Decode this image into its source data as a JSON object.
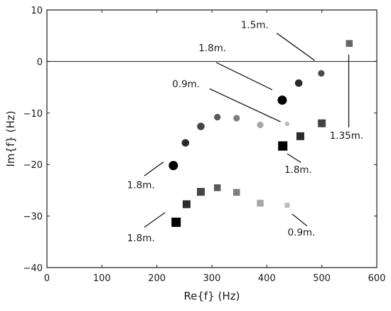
{
  "chart_data": {
    "type": "scatter",
    "xlabel": "Re{f} (Hz)",
    "ylabel": "Im{f} (Hz)",
    "xlim": [
      0,
      600
    ],
    "ylim": [
      -40,
      10
    ],
    "xticks": [
      0,
      100,
      200,
      300,
      400,
      500,
      600
    ],
    "yticks": [
      10,
      0,
      -10,
      -20,
      -30,
      -40
    ],
    "xtick_labels": [
      "0",
      "100",
      "200",
      "300",
      "400",
      "500",
      "600"
    ],
    "ytick_labels": [
      "10",
      "0",
      "−10",
      "−20",
      "−30",
      "−40"
    ],
    "reference_line_y": 0,
    "grid": false,
    "series": [
      {
        "marker": "circle",
        "points": [
          {
            "x": 230,
            "y": -20.2,
            "size": "large",
            "color": "#000000"
          },
          {
            "x": 252,
            "y": -15.8,
            "size": "medium",
            "color": "#2b2b2b"
          },
          {
            "x": 280,
            "y": -12.6,
            "size": "medium",
            "color": "#444444"
          },
          {
            "x": 310,
            "y": -10.8,
            "size": "small",
            "color": "#5a5a5a"
          },
          {
            "x": 345,
            "y": -11.0,
            "size": "small",
            "color": "#7d7d7d"
          },
          {
            "x": 388,
            "y": -12.3,
            "size": "small",
            "color": "#a6a6a6"
          },
          {
            "x": 437,
            "y": -12.1,
            "size": "tiny",
            "color": "#bdbdbd"
          },
          {
            "x": 428,
            "y": -7.5,
            "size": "large",
            "color": "#000000"
          },
          {
            "x": 458,
            "y": -4.2,
            "size": "medium",
            "color": "#2b2b2b"
          },
          {
            "x": 499,
            "y": -2.3,
            "size": "small",
            "color": "#4a4a4a"
          }
        ]
      },
      {
        "marker": "square",
        "points": [
          {
            "x": 235,
            "y": -31.2,
            "size": "large",
            "color": "#000000"
          },
          {
            "x": 254,
            "y": -27.7,
            "size": "medium",
            "color": "#2b2b2b"
          },
          {
            "x": 280,
            "y": -25.3,
            "size": "medium",
            "color": "#444444"
          },
          {
            "x": 310,
            "y": -24.5,
            "size": "small",
            "color": "#5a5a5a"
          },
          {
            "x": 345,
            "y": -25.4,
            "size": "small",
            "color": "#7d7d7d"
          },
          {
            "x": 388,
            "y": -27.5,
            "size": "small",
            "color": "#a6a6a6"
          },
          {
            "x": 437,
            "y": -27.9,
            "size": "tiny",
            "color": "#bdbdbd"
          },
          {
            "x": 429,
            "y": -16.4,
            "size": "large",
            "color": "#000000"
          },
          {
            "x": 461,
            "y": -14.5,
            "size": "medium",
            "color": "#2b2b2b"
          },
          {
            "x": 500,
            "y": -12.0,
            "size": "medium",
            "color": "#444444"
          },
          {
            "x": 550,
            "y": 3.5,
            "size": "small",
            "color": "#666666"
          }
        ]
      }
    ],
    "annotations": [
      {
        "text": "1.5m.",
        "label_at": [
          378,
          6.5
        ],
        "anchor": "middle",
        "line_from": [
          418,
          5.5
        ],
        "line_to": [
          487,
          0.2
        ]
      },
      {
        "text": "1.8m.",
        "label_at": [
          301,
          2.0
        ],
        "anchor": "middle",
        "line_from": [
          308,
          -0.2
        ],
        "line_to": [
          410,
          -5.5
        ]
      },
      {
        "text": "0.9m.",
        "label_at": [
          253,
          -5.0
        ],
        "anchor": "middle",
        "line_from": [
          296,
          -5.3
        ],
        "line_to": [
          425,
          -11.7
        ]
      },
      {
        "text": "1.35m.",
        "label_at": [
          545,
          -15.0
        ],
        "anchor": "middle",
        "line_from": [
          549,
          1.3
        ],
        "line_to": [
          549,
          -12.8
        ]
      },
      {
        "text": "1.8m.",
        "label_at": [
          457,
          -21.6
        ],
        "anchor": "middle",
        "line_from": [
          437,
          -17.9
        ],
        "line_to": [
          462,
          -19.6
        ]
      },
      {
        "text": "1.8m.",
        "label_at": [
          171,
          -24.6
        ],
        "anchor": "middle",
        "line_from": [
          177,
          -22.2
        ],
        "line_to": [
          212,
          -19.5
        ]
      },
      {
        "text": "1.8m.",
        "label_at": [
          171,
          -34.9
        ],
        "anchor": "middle",
        "line_from": [
          177,
          -32.2
        ],
        "line_to": [
          215,
          -29.3
        ]
      },
      {
        "text": "0.9m.",
        "label_at": [
          463,
          -33.8
        ],
        "anchor": "middle",
        "line_from": [
          446,
          -29.6
        ],
        "line_to": [
          473,
          -31.9
        ]
      }
    ]
  }
}
